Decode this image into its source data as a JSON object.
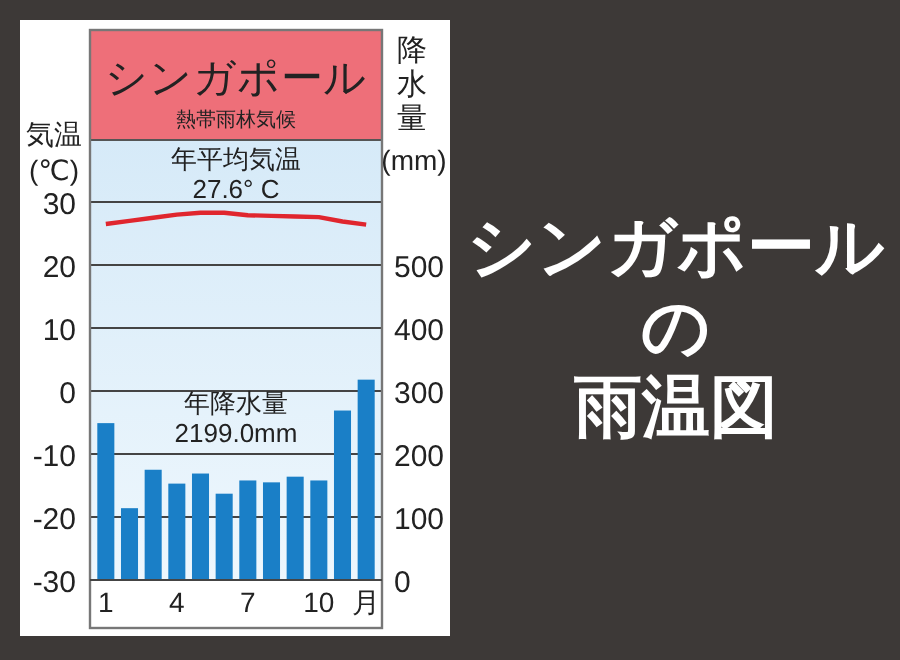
{
  "chart_data": {
    "type": "bar",
    "title": "シンガポール",
    "subtitle": "熱帯雨林気候",
    "ylabel": "気温\n(℃)",
    "y2label": "降水量\n(mm)",
    "categories": [
      "1",
      null,
      null,
      "4",
      null,
      null,
      "7",
      null,
      null,
      "10",
      null,
      "月"
    ],
    "series": [
      {
        "type": "line",
        "color": "#e0262e",
        "values": [
          26.5,
          27.0,
          27.5,
          28.0,
          28.3,
          28.3,
          27.9,
          27.8,
          27.7,
          27.6,
          26.9,
          26.4
        ]
      },
      {
        "axis": "y2",
        "color": "#1a7fc7",
        "values": [
          249,
          114,
          175,
          153,
          169,
          137,
          158,
          155,
          164,
          158,
          269,
          318
        ]
      }
    ],
    "ylim": [
      -30,
      30
    ],
    "yticks": [
      -30,
      -20,
      -10,
      0,
      10,
      20,
      30
    ],
    "y2lim": [
      0,
      600
    ],
    "y2ticks": [
      0,
      100,
      200,
      300,
      400,
      500
    ],
    "grid": "y",
    "annotations": [
      "年平均気温\n27.6° C",
      "年降水量\n2199.0mm",
      "シンガポール",
      "の",
      "雨温図"
    ]
  }
}
